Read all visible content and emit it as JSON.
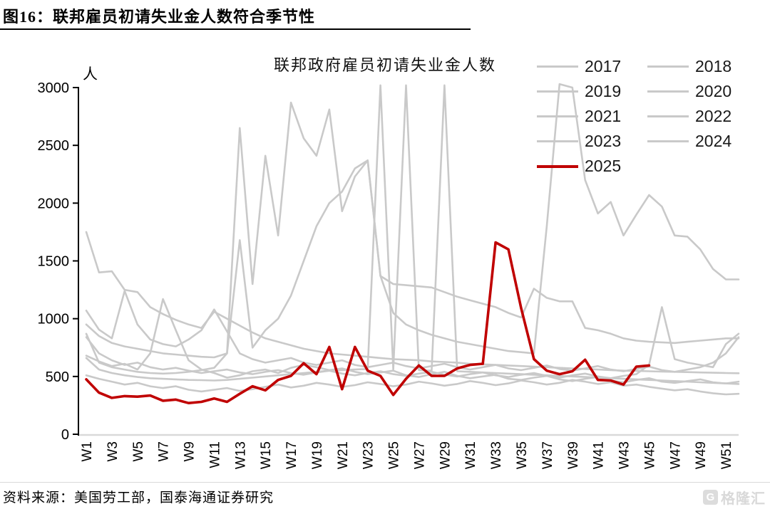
{
  "figure": {
    "title": "图16：联邦雇员初请失业金人数符合季节性",
    "source": "资料来源：美国劳工部，国泰海通证券研究",
    "watermark": "格隆汇",
    "watermark_icon": "G"
  },
  "chart_data": {
    "type": "line",
    "title": "联邦政府雇员初请失业金人数",
    "unit_label": "人",
    "ylabel": "人",
    "xlabel": "",
    "ylim": [
      0,
      3000
    ],
    "y_step": 500,
    "y_tick_labels": [
      "0",
      "500",
      "1000",
      "1500",
      "2000",
      "2500",
      "3000"
    ],
    "x_tick_labels": [
      "W1",
      "W3",
      "W5",
      "W7",
      "W9",
      "W11",
      "W13",
      "W15",
      "W17",
      "W19",
      "W21",
      "W23",
      "W25",
      "W27",
      "W29",
      "W31",
      "W33",
      "W35",
      "W37",
      "W39",
      "W41",
      "W43",
      "W45",
      "W47",
      "W49",
      "W51"
    ],
    "weeks": 52,
    "grid": false,
    "legend_position": "top-right",
    "colors": {
      "history": "#c9c9c9",
      "current": "#c00000",
      "axis": "#000000",
      "baseline": "#d9d9d9"
    },
    "series": [
      {
        "name": "2017",
        "color": "#c9c9c9",
        "values": [
          510,
          480,
          455,
          430,
          445,
          415,
          400,
          415,
          385,
          370,
          385,
          400,
          375,
          390,
          410,
          430,
          405,
          420,
          445,
          430,
          410,
          425,
          450,
          435,
          415,
          430,
          455,
          440,
          420,
          435,
          460,
          445,
          425,
          440,
          465,
          450,
          430,
          445,
          470,
          455,
          435,
          450,
          420,
          430,
          410,
          395,
          380,
          390,
          370,
          355,
          345,
          350
        ]
      },
      {
        "name": "2018",
        "color": "#c9c9c9",
        "values": [
          680,
          630,
          590,
          610,
          560,
          700,
          1170,
          900,
          640,
          560,
          530,
          490,
          510,
          545,
          560,
          530,
          575,
          600,
          580,
          555,
          570,
          540,
          520,
          535,
          550,
          510,
          495,
          520,
          540,
          505,
          485,
          500,
          515,
          480,
          470,
          490,
          505,
          475,
          460,
          480,
          495,
          465,
          450,
          470,
          485,
          455,
          445,
          460,
          475,
          450,
          440,
          455
        ]
      },
      {
        "name": "2019",
        "color": "#c9c9c9",
        "values": [
          1750,
          1400,
          1410,
          1250,
          1230,
          1100,
          1040,
          990,
          950,
          920,
          1060,
          1000,
          940,
          880,
          830,
          800,
          770,
          740,
          720,
          700,
          690,
          680,
          670,
          660,
          650,
          645,
          640,
          630,
          625,
          620,
          610,
          605,
          600,
          595,
          590,
          585,
          580,
          575,
          570,
          565,
          560,
          555,
          550,
          548,
          545,
          542,
          540,
          538,
          535,
          532,
          530,
          528
        ]
      },
      {
        "name": "2020",
        "color": "#c9c9c9",
        "values": [
          870,
          620,
          580,
          560,
          540,
          530,
          525,
          530,
          540,
          555,
          575,
          700,
          2650,
          1300,
          2410,
          1720,
          2870,
          2560,
          2410,
          2810,
          1930,
          2230,
          2370,
          1370,
          1050,
          950,
          900,
          860,
          830,
          800,
          780,
          760,
          740,
          720,
          710,
          700,
          1800,
          3030,
          3000,
          2200,
          1910,
          2010,
          1720,
          1900,
          2070,
          1970,
          1720,
          1710,
          1600,
          1430,
          1340,
          1340
        ]
      },
      {
        "name": "2021",
        "color": "#c9c9c9",
        "values": [
          950,
          850,
          790,
          760,
          740,
          720,
          700,
          690,
          680,
          670,
          665,
          700,
          1680,
          750,
          900,
          1000,
          1200,
          1500,
          1800,
          2000,
          2100,
          2300,
          2370,
          1370,
          1300,
          1290,
          1280,
          1270,
          1230,
          1190,
          1160,
          1130,
          1100,
          1050,
          1010,
          1260,
          1180,
          1150,
          1150,
          920,
          900,
          870,
          830,
          810,
          800,
          795,
          790,
          800,
          810,
          820,
          830,
          830
        ]
      },
      {
        "name": "2022",
        "color": "#c9c9c9",
        "values": [
          660,
          560,
          530,
          510,
          495,
          485,
          480,
          475,
          470,
          468,
          465,
          470,
          480,
          490,
          500,
          510,
          520,
          530,
          540,
          550,
          555,
          560,
          565,
          3020,
          560,
          3020,
          555,
          550,
          3020,
          545,
          540,
          535,
          530,
          525,
          520,
          515,
          510,
          505,
          500,
          495,
          490,
          485,
          480,
          475,
          470,
          465,
          460,
          455,
          450,
          445,
          440,
          435
        ]
      },
      {
        "name": "2023",
        "color": "#c9c9c9",
        "values": [
          1070,
          905,
          830,
          1240,
          950,
          820,
          780,
          760,
          820,
          900,
          1080,
          890,
          700,
          650,
          620,
          640,
          660,
          620,
          600,
          620,
          640,
          600,
          580,
          600,
          620,
          590,
          570,
          590,
          610,
          580,
          560,
          580,
          600,
          570,
          555,
          575,
          595,
          565,
          550,
          570,
          590,
          560,
          545,
          565,
          585,
          555,
          540,
          560,
          580,
          620,
          700,
          840
        ]
      },
      {
        "name": "2024",
        "color": "#c9c9c9",
        "values": [
          840,
          700,
          640,
          600,
          620,
          580,
          560,
          575,
          550,
          530,
          545,
          560,
          535,
          520,
          540,
          555,
          530,
          515,
          535,
          550,
          525,
          510,
          530,
          545,
          520,
          505,
          525,
          540,
          515,
          500,
          520,
          535,
          510,
          495,
          515,
          530,
          505,
          490,
          510,
          525,
          500,
          485,
          505,
          520,
          600,
          1100,
          650,
          620,
          600,
          580,
          780,
          870
        ]
      },
      {
        "name": "2025",
        "color": "#c00000",
        "values": [
          475,
          360,
          315,
          330,
          325,
          335,
          290,
          300,
          270,
          280,
          310,
          280,
          350,
          415,
          380,
          470,
          505,
          615,
          520,
          755,
          390,
          755,
          550,
          505,
          340,
          480,
          595,
          505,
          505,
          570,
          600,
          610,
          1660,
          1600,
          1090,
          650,
          550,
          520,
          545,
          645,
          470,
          465,
          430,
          585,
          595
        ]
      }
    ]
  }
}
